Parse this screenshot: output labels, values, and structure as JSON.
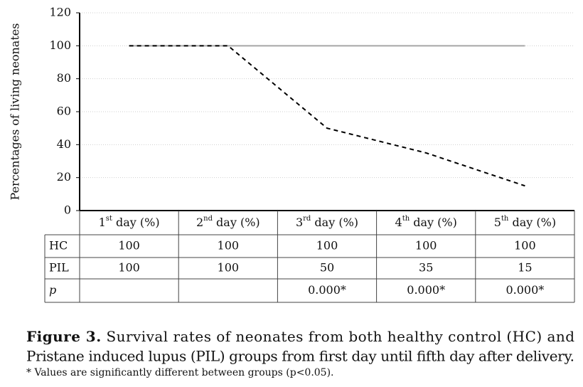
{
  "chart_data": {
    "type": "line",
    "ylabel": "Percentages of living neonates",
    "categories": [
      {
        "base": "1",
        "sup": "st",
        "tail": " day (%)"
      },
      {
        "base": "2",
        "sup": "nd",
        "tail": " day (%)"
      },
      {
        "base": "3",
        "sup": "rd",
        "tail": " day (%)"
      },
      {
        "base": "4",
        "sup": "th",
        "tail": " day (%)"
      },
      {
        "base": "5",
        "sup": "th",
        "tail": " day (%)"
      }
    ],
    "series": [
      {
        "name": "HC",
        "color": "#a6a6a6",
        "dash": false,
        "values": [
          100,
          100,
          100,
          100,
          100
        ]
      },
      {
        "name": "PIL",
        "color": "#000000",
        "dash": true,
        "values": [
          100,
          100,
          50,
          35,
          15
        ]
      }
    ],
    "p_row": {
      "name": "p",
      "values": [
        null,
        null,
        "0.000*",
        "0.000*",
        "0.000*"
      ]
    },
    "ylim": [
      0,
      120
    ],
    "yticks": [
      0,
      20,
      40,
      60,
      80,
      100,
      120
    ],
    "grid": true,
    "caption": {
      "label": "Figure 3.",
      "lines": [
        "Survival rates of neonates from both healthy control (HC) and",
        "Pristane induced lupus (PIL) groups from first day until fifth day after delivery."
      ],
      "footnote": "* Values are significantly different between groups (p<0.05)."
    }
  }
}
